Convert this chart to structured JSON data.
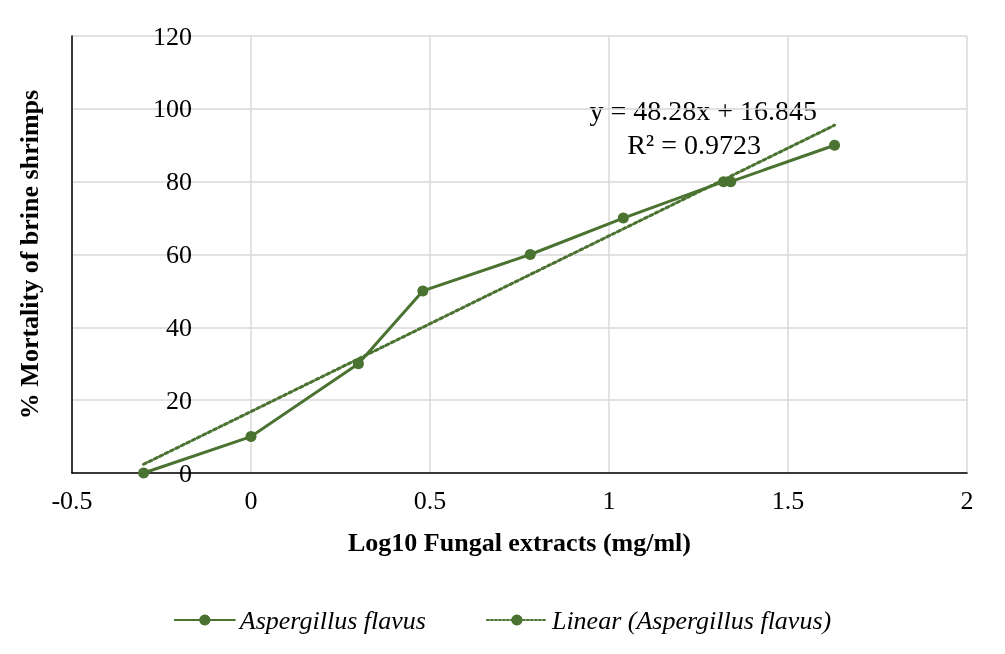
{
  "chart_data": {
    "type": "line",
    "xlabel": "Log10 Fungal extracts (mg/ml)",
    "ylabel": "% Mortality of brine shrimps",
    "x": [
      -0.3,
      0,
      0.3,
      0.48,
      0.78,
      1.04,
      1.32,
      1.34,
      1.63
    ],
    "series": [
      {
        "name": "Aspergillus flavus",
        "color": "#4a7230",
        "values": [
          0,
          10,
          30,
          50,
          60,
          70,
          80,
          80,
          90
        ],
        "marker": "circle",
        "line_style": "solid"
      },
      {
        "name": "Linear (Aspergillus flavus)",
        "type": "line",
        "color": "#4a7230",
        "x": [
          -0.3,
          1.63
        ],
        "values": [
          2.4,
          95.5
        ],
        "marker": "none",
        "line_style": "dotted"
      }
    ],
    "annotations": [
      "y = 48.28x + 16.845",
      "R² = 0.9723"
    ],
    "xlim": [
      -0.5,
      2
    ],
    "xticks": [
      -0.5,
      0,
      0.5,
      1,
      1.5,
      2
    ],
    "ylim": [
      0,
      120
    ],
    "yticks": [
      0,
      20,
      40,
      60,
      80,
      100,
      120
    ],
    "grid": true,
    "legend": "bottom"
  }
}
